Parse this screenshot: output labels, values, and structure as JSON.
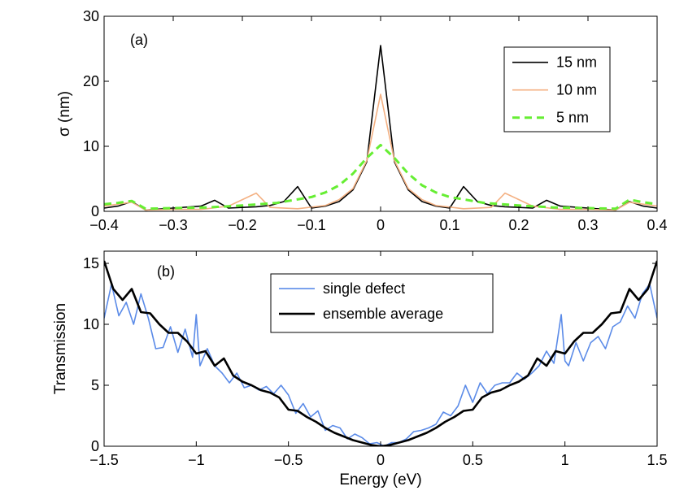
{
  "chart_data": [
    {
      "type": "line",
      "panel_label": "(a)",
      "xlabel": "",
      "ylabel": "σ (nm)",
      "xlim": [
        -0.4,
        0.4
      ],
      "ylim": [
        0,
        30
      ],
      "xticks": [
        -0.4,
        -0.3,
        -0.2,
        -0.1,
        0,
        0.1,
        0.2,
        0.3,
        0.4
      ],
      "xtick_labels": [
        "−0.4",
        "−0.3",
        "−0.2",
        "−0.1",
        "0",
        "0.1",
        "0.2",
        "0.3",
        "0.4"
      ],
      "yticks": [
        0,
        10,
        20,
        30
      ],
      "ytick_labels": [
        "0",
        "10",
        "20",
        "30"
      ],
      "grid": false,
      "legend_position": "top-right",
      "series": [
        {
          "name": "15 nm",
          "color": "#000000",
          "style": "solid",
          "x": [
            -0.4,
            -0.38,
            -0.36,
            -0.34,
            -0.3,
            -0.26,
            -0.24,
            -0.22,
            -0.2,
            -0.18,
            -0.16,
            -0.14,
            -0.12,
            -0.1,
            -0.08,
            -0.06,
            -0.04,
            -0.02,
            0,
            0.02,
            0.04,
            0.06,
            0.08,
            0.1,
            0.12,
            0.14,
            0.16,
            0.18,
            0.2,
            0.22,
            0.24,
            0.26,
            0.3,
            0.34,
            0.36,
            0.38,
            0.4
          ],
          "y": [
            0.5,
            0.8,
            1.5,
            0.2,
            0.5,
            0.8,
            1.7,
            0.5,
            0.6,
            0.7,
            0.9,
            1.5,
            3.8,
            0.5,
            0.8,
            1.5,
            3.3,
            7.6,
            25.5,
            7.6,
            3.3,
            1.5,
            0.8,
            0.5,
            3.8,
            1.5,
            0.9,
            0.7,
            0.6,
            0.5,
            1.7,
            0.8,
            0.5,
            0.2,
            1.5,
            0.8,
            0.5
          ]
        },
        {
          "name": "10 nm",
          "color": "#f4b183",
          "style": "solid",
          "x": [
            -0.4,
            -0.36,
            -0.34,
            -0.3,
            -0.26,
            -0.22,
            -0.18,
            -0.16,
            -0.12,
            -0.08,
            -0.06,
            -0.04,
            -0.02,
            0,
            0.02,
            0.04,
            0.06,
            0.08,
            0.12,
            0.16,
            0.18,
            0.22,
            0.26,
            0.3,
            0.34,
            0.36,
            0.4
          ],
          "y": [
            0.8,
            1.4,
            0.2,
            0.3,
            0.3,
            0.8,
            2.8,
            0.6,
            0.4,
            0.9,
            1.8,
            3.5,
            7.8,
            18.0,
            7.8,
            3.5,
            1.8,
            0.9,
            0.4,
            0.6,
            2.8,
            0.8,
            0.3,
            0.3,
            0.2,
            1.4,
            0.8
          ]
        },
        {
          "name": "5 nm",
          "color": "#66ee33",
          "style": "dashed",
          "x": [
            -0.4,
            -0.38,
            -0.36,
            -0.34,
            -0.3,
            -0.25,
            -0.2,
            -0.15,
            -0.1,
            -0.08,
            -0.06,
            -0.04,
            -0.02,
            0,
            0.02,
            0.04,
            0.06,
            0.08,
            0.1,
            0.15,
            0.2,
            0.25,
            0.3,
            0.34,
            0.36,
            0.38,
            0.4
          ],
          "y": [
            1.1,
            1.3,
            1.6,
            0.4,
            0.5,
            0.6,
            0.9,
            1.3,
            2.2,
            2.9,
            4.0,
            5.8,
            8.2,
            10.2,
            8.2,
            5.8,
            4.0,
            2.9,
            2.2,
            1.3,
            0.9,
            0.6,
            0.5,
            0.4,
            1.8,
            1.4,
            1.1
          ]
        }
      ]
    },
    {
      "type": "line",
      "panel_label": "(b)",
      "xlabel": "Energy (eV)",
      "ylabel": "Transmission",
      "xlim": [
        -1.5,
        1.5
      ],
      "ylim": [
        0,
        16
      ],
      "xticks": [
        -1.5,
        -1,
        -0.5,
        0,
        0.5,
        1,
        1.5
      ],
      "xtick_labels": [
        "−1.5",
        "−1",
        "−0.5",
        "0",
        "0.5",
        "1",
        "1.5"
      ],
      "yticks": [
        0,
        5,
        10,
        15
      ],
      "ytick_labels": [
        "0",
        "5",
        "10",
        "15"
      ],
      "grid": false,
      "legend_position": "top-center",
      "series": [
        {
          "name": "single defect",
          "color": "#5b8be8",
          "style": "solid",
          "x": [
            -1.5,
            -1.46,
            -1.42,
            -1.38,
            -1.34,
            -1.3,
            -1.26,
            -1.22,
            -1.18,
            -1.14,
            -1.1,
            -1.06,
            -1.02,
            -1.0,
            -0.98,
            -0.94,
            -0.9,
            -0.86,
            -0.82,
            -0.78,
            -0.74,
            -0.7,
            -0.66,
            -0.62,
            -0.58,
            -0.54,
            -0.5,
            -0.46,
            -0.42,
            -0.38,
            -0.34,
            -0.3,
            -0.26,
            -0.22,
            -0.18,
            -0.14,
            -0.1,
            -0.06,
            -0.02,
            0.02,
            0.06,
            0.1,
            0.14,
            0.18,
            0.22,
            0.26,
            0.3,
            0.34,
            0.38,
            0.42,
            0.46,
            0.5,
            0.54,
            0.58,
            0.62,
            0.66,
            0.7,
            0.74,
            0.78,
            0.82,
            0.86,
            0.9,
            0.94,
            0.98,
            1.0,
            1.02,
            1.06,
            1.1,
            1.14,
            1.18,
            1.22,
            1.26,
            1.3,
            1.34,
            1.38,
            1.42,
            1.46,
            1.5
          ],
          "y": [
            10.5,
            13.3,
            10.7,
            11.8,
            10.0,
            12.5,
            10.5,
            8.0,
            8.1,
            9.8,
            7.7,
            9.6,
            7.3,
            10.8,
            6.6,
            8.0,
            6.6,
            6.0,
            5.2,
            6.0,
            4.8,
            5.0,
            4.6,
            4.9,
            4.3,
            5.0,
            4.2,
            2.7,
            3.5,
            2.4,
            2.9,
            1.3,
            1.7,
            1.5,
            0.6,
            1.0,
            0.7,
            0.2,
            0.3,
            0.0,
            0.3,
            0.3,
            0.6,
            1.2,
            1.3,
            1.5,
            1.8,
            2.8,
            2.5,
            3.3,
            5.0,
            3.6,
            5.2,
            4.3,
            5.0,
            5.2,
            5.2,
            6.0,
            5.5,
            6.0,
            6.6,
            7.8,
            6.8,
            10.8,
            7.0,
            6.6,
            8.5,
            7.0,
            8.5,
            9.0,
            8.0,
            9.8,
            10.2,
            11.5,
            10.5,
            12.5,
            13.3,
            10.5
          ]
        },
        {
          "name": "ensemble average",
          "color": "#000000",
          "style": "solid",
          "x": [
            -1.5,
            -1.45,
            -1.4,
            -1.35,
            -1.3,
            -1.25,
            -1.2,
            -1.15,
            -1.1,
            -1.05,
            -1.0,
            -0.95,
            -0.9,
            -0.85,
            -0.8,
            -0.75,
            -0.7,
            -0.65,
            -0.6,
            -0.55,
            -0.5,
            -0.45,
            -0.4,
            -0.35,
            -0.3,
            -0.25,
            -0.2,
            -0.15,
            -0.1,
            -0.05,
            0,
            0.05,
            0.1,
            0.15,
            0.2,
            0.25,
            0.3,
            0.35,
            0.4,
            0.45,
            0.5,
            0.55,
            0.6,
            0.65,
            0.7,
            0.75,
            0.8,
            0.85,
            0.9,
            0.95,
            1.0,
            1.05,
            1.1,
            1.15,
            1.2,
            1.25,
            1.3,
            1.35,
            1.4,
            1.45,
            1.5
          ],
          "y": [
            15.2,
            12.9,
            12.0,
            12.9,
            11.0,
            10.9,
            10.0,
            9.3,
            9.3,
            8.6,
            7.6,
            7.8,
            6.6,
            7.2,
            5.8,
            5.3,
            5.0,
            4.6,
            4.4,
            4.0,
            3.0,
            2.9,
            2.4,
            2.0,
            1.5,
            1.1,
            0.8,
            0.5,
            0.3,
            0.1,
            0.0,
            0.1,
            0.3,
            0.5,
            0.8,
            1.1,
            1.5,
            2.0,
            2.4,
            2.9,
            3.0,
            4.0,
            4.4,
            4.6,
            5.0,
            5.3,
            5.8,
            7.2,
            6.6,
            7.8,
            7.6,
            8.6,
            9.3,
            9.3,
            10.0,
            10.9,
            11.0,
            12.9,
            12.0,
            12.9,
            15.2
          ]
        }
      ]
    }
  ]
}
